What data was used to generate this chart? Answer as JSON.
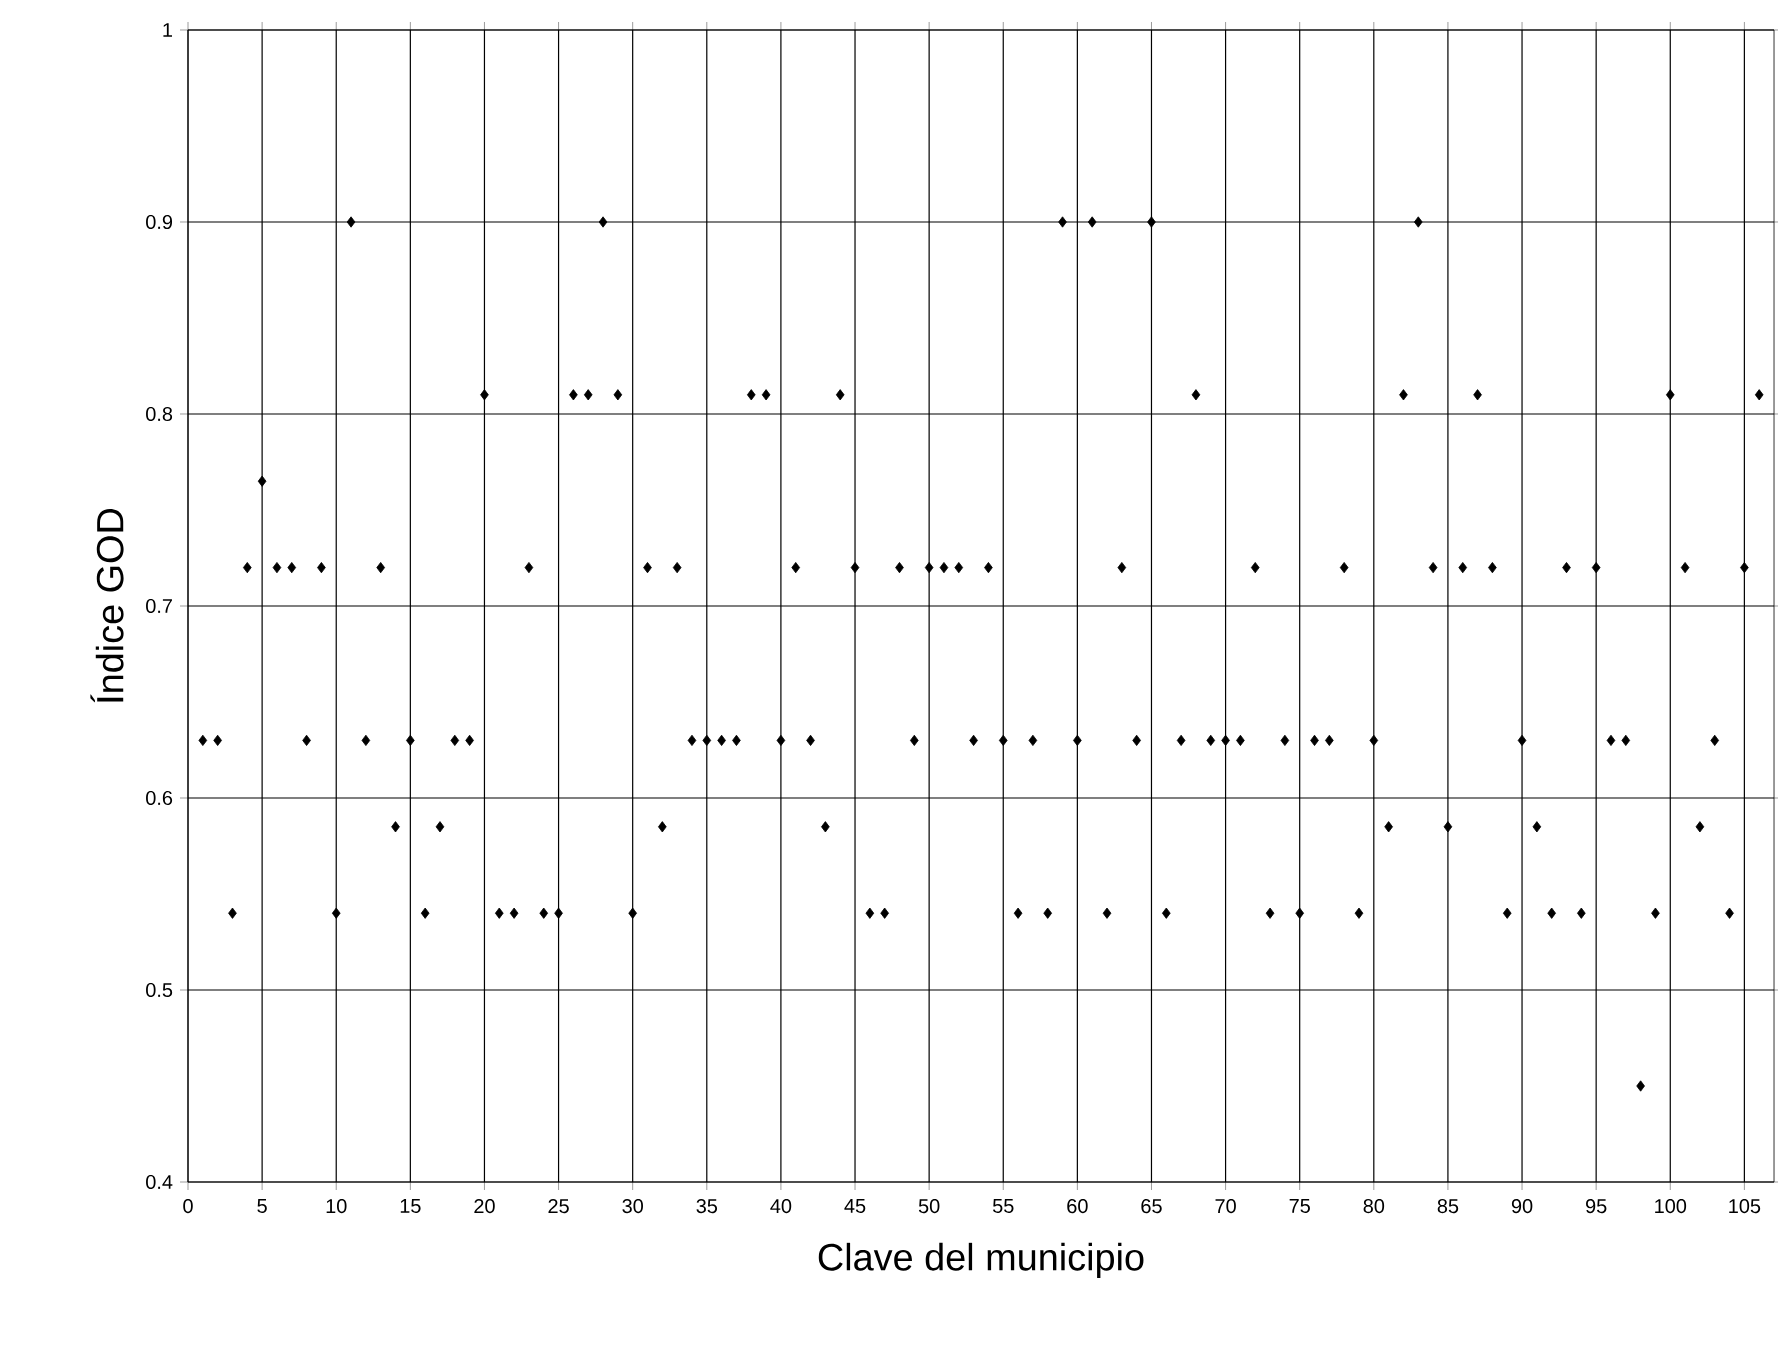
{
  "chart_data": {
    "type": "scatter",
    "xlabel": "Clave del municipio",
    "ylabel": "Índice GOD",
    "x": [
      1,
      2,
      3,
      4,
      5,
      6,
      7,
      8,
      9,
      10,
      11,
      12,
      13,
      14,
      15,
      16,
      17,
      18,
      19,
      20,
      21,
      22,
      23,
      24,
      25,
      26,
      27,
      28,
      29,
      30,
      31,
      32,
      33,
      34,
      35,
      36,
      37,
      38,
      39,
      40,
      41,
      42,
      43,
      44,
      45,
      46,
      47,
      48,
      49,
      50,
      51,
      52,
      53,
      54,
      55,
      56,
      57,
      58,
      59,
      60,
      61,
      62,
      63,
      64,
      65,
      66,
      67,
      68,
      69,
      70,
      71,
      72,
      73,
      74,
      75,
      76,
      77,
      78,
      79,
      80,
      81,
      82,
      83,
      84,
      85,
      86,
      87,
      88,
      89,
      90,
      91,
      92,
      93,
      94,
      95,
      96,
      97,
      98,
      99,
      100,
      101,
      102,
      103,
      104,
      105,
      106
    ],
    "values": [
      0.63,
      0.63,
      0.54,
      0.72,
      0.765,
      0.72,
      0.72,
      0.63,
      0.72,
      0.54,
      0.9,
      0.63,
      0.72,
      0.585,
      0.63,
      0.54,
      0.585,
      0.63,
      0.63,
      0.81,
      0.54,
      0.54,
      0.72,
      0.54,
      0.54,
      0.81,
      0.81,
      0.9,
      0.81,
      0.54,
      0.72,
      0.585,
      0.72,
      0.63,
      0.63,
      0.63,
      0.63,
      0.81,
      0.81,
      0.63,
      0.72,
      0.63,
      0.585,
      0.81,
      0.72,
      0.54,
      0.54,
      0.72,
      0.63,
      0.72,
      0.72,
      0.72,
      0.63,
      0.72,
      0.63,
      0.54,
      0.63,
      0.54,
      0.9,
      0.63,
      0.9,
      0.54,
      0.72,
      0.63,
      0.9,
      0.54,
      0.63,
      0.81,
      0.63,
      0.63,
      0.63,
      0.72,
      0.54,
      0.63,
      0.54,
      0.63,
      0.63,
      0.72,
      0.54,
      0.63,
      0.585,
      0.81,
      0.9,
      0.72,
      0.585,
      0.72,
      0.81,
      0.72,
      0.54,
      0.63,
      0.585,
      0.54,
      0.72,
      0.54,
      0.72,
      0.63,
      0.63,
      0.45,
      0.54,
      0.81,
      0.72,
      0.585,
      0.63,
      0.54,
      0.72,
      0.81
    ],
    "color": "#000000",
    "marker": "diamond",
    "grid": true,
    "xlim": [
      0,
      107
    ],
    "xticks": [
      0,
      5,
      10,
      15,
      20,
      25,
      30,
      35,
      40,
      45,
      50,
      55,
      60,
      65,
      70,
      75,
      80,
      85,
      90,
      95,
      100,
      105
    ],
    "ylim": [
      0.4,
      1
    ],
    "yticks": [
      0.4,
      0.5,
      0.6,
      0.7,
      0.8,
      0.9,
      1
    ]
  }
}
